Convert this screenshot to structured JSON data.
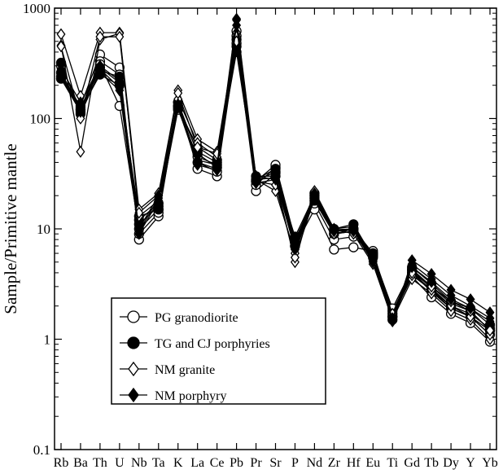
{
  "chart_data": {
    "type": "line",
    "xlabel": "",
    "ylabel": "Sample/Primitive mantle",
    "yscale": "log",
    "ylim": [
      0.1,
      1000
    ],
    "yticks": [
      "0.1",
      "1",
      "10",
      "100",
      "1000"
    ],
    "categories": [
      "Rb",
      "Ba",
      "Th",
      "U",
      "Nb",
      "Ta",
      "K",
      "La",
      "Ce",
      "Pb",
      "Pr",
      "Sr",
      "P",
      "Nd",
      "Zr",
      "Hf",
      "Eu",
      "Ti",
      "Gd",
      "Tb",
      "Dy",
      "Y",
      "Yb"
    ],
    "legend_position": "lower-left",
    "series": [
      {
        "name": "PG granodiorite",
        "marker": "open-circle",
        "color": "#000000",
        "values": [
          [
            240,
            130,
            380,
            290,
            8,
            13,
            140,
            35,
            30,
            480,
            22,
            32,
            7,
            15,
            6.5,
            6.8,
            6.3,
            1.6,
            3.7,
            2.4,
            1.7,
            1.4,
            0.95
          ],
          [
            300,
            120,
            330,
            250,
            9,
            14,
            130,
            40,
            33,
            560,
            25,
            36,
            7.5,
            17,
            8,
            8.5,
            6,
            1.8,
            4,
            2.7,
            1.9,
            1.6,
            1.1
          ],
          [
            230,
            115,
            310,
            130,
            10,
            15,
            120,
            45,
            38,
            620,
            27,
            38,
            8,
            19,
            9,
            9.5,
            5.8,
            1.9,
            4.3,
            3,
            2.1,
            1.8,
            1.2
          ]
        ]
      },
      {
        "name": "TG and CJ porphyries",
        "marker": "filled-circle",
        "color": "#000000",
        "values": [
          [
            320,
            110,
            270,
            240,
            11,
            16,
            130,
            50,
            40,
            400,
            28,
            35,
            7.5,
            21,
            10,
            11,
            5.5,
            1.7,
            4.5,
            3.2,
            2.2,
            1.9,
            1.35
          ],
          [
            260,
            125,
            290,
            210,
            12,
            17,
            125,
            55,
            42,
            450,
            30,
            30,
            8.5,
            20,
            9.5,
            10,
            6,
            1.6,
            4.2,
            2.9,
            2,
            1.7,
            1.25
          ],
          [
            230,
            120,
            250,
            200,
            13,
            15,
            140,
            48,
            36,
            520,
            27,
            33,
            7,
            18,
            9,
            10,
            5.7,
            1.5,
            4,
            2.8,
            1.9,
            1.6,
            1.2
          ]
        ]
      },
      {
        "name": "NM granite",
        "marker": "open-diamond",
        "color": "#000000",
        "values": [
          [
            580,
            160,
            600,
            600,
            15,
            21,
            180,
            65,
            50,
            600,
            30,
            28,
            5,
            22,
            10,
            9,
            4.8,
            1.5,
            3.5,
            2.6,
            1.8,
            1.5,
            1.0
          ],
          [
            460,
            50,
            520,
            590,
            13,
            18,
            150,
            60,
            45,
            550,
            28,
            22,
            6,
            20,
            9.5,
            10,
            5.2,
            1.6,
            3.8,
            2.8,
            2.0,
            1.6,
            1.1
          ],
          [
            450,
            100,
            550,
            550,
            14,
            20,
            170,
            55,
            48,
            500,
            27,
            25,
            5.5,
            19,
            9,
            9.5,
            5,
            1.7,
            4,
            3,
            2.2,
            1.8,
            1.2
          ]
        ]
      },
      {
        "name": "NM porphyry",
        "marker": "filled-diamond",
        "color": "#000000",
        "values": [
          [
            280,
            140,
            300,
            220,
            10,
            20,
            135,
            42,
            38,
            800,
            30,
            30,
            7,
            21,
            10,
            10.5,
            5.5,
            1.45,
            5.2,
            3.9,
            2.8,
            2.3,
            1.75
          ],
          [
            250,
            120,
            280,
            190,
            9.5,
            19,
            130,
            40,
            35,
            780,
            28,
            29,
            6.8,
            20,
            9.8,
            10,
            5.3,
            1.5,
            4.8,
            3.5,
            2.5,
            2.0,
            1.55
          ],
          [
            240,
            115,
            260,
            180,
            9,
            18,
            125,
            38,
            34,
            700,
            26,
            28,
            6.5,
            19,
            9.5,
            9.8,
            5.1,
            1.55,
            4.5,
            3.3,
            2.3,
            1.9,
            1.45
          ]
        ]
      }
    ]
  }
}
